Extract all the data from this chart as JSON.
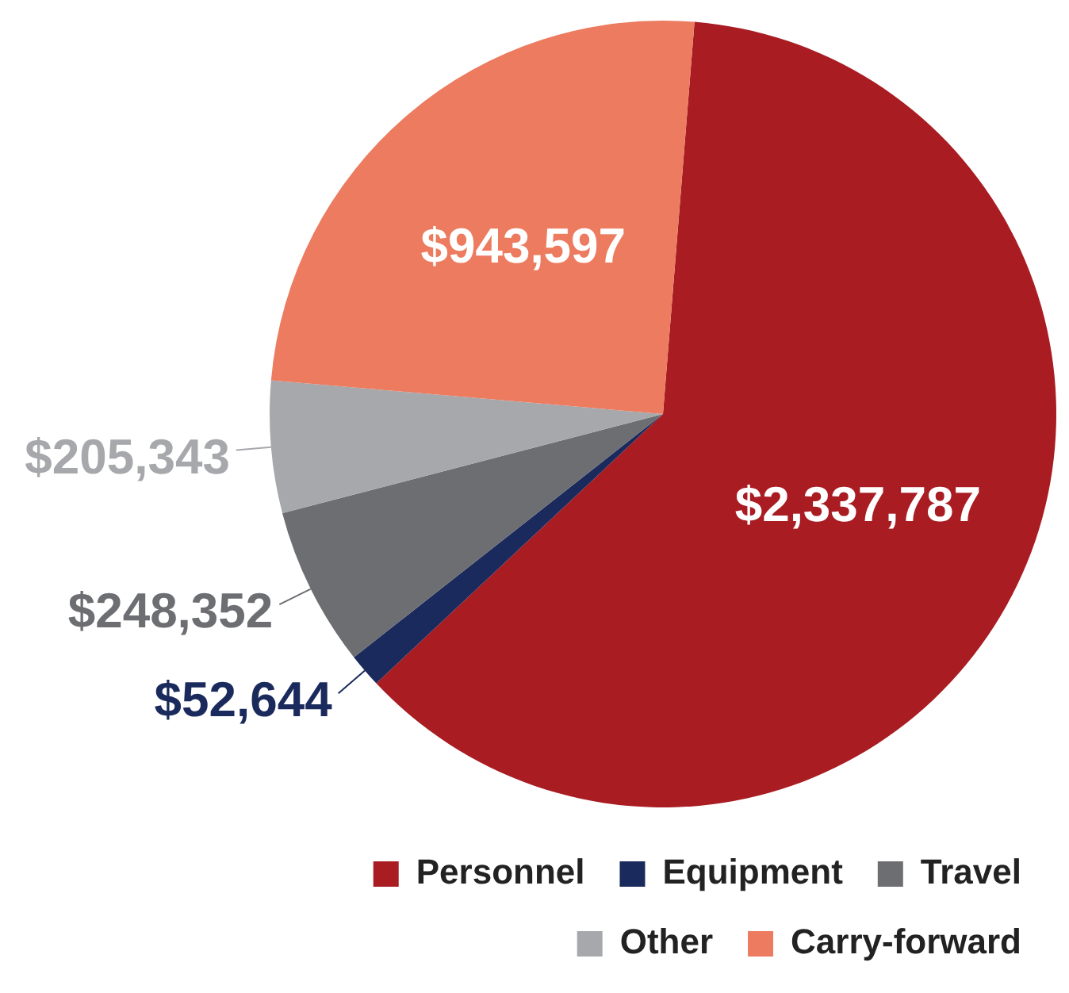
{
  "chart_data": {
    "type": "pie",
    "categories": [
      "Personnel",
      "Equipment",
      "Travel",
      "Other",
      "Carry-forward"
    ],
    "values": [
      2337787,
      52644,
      248352,
      205343,
      943597
    ],
    "colors": [
      "#a81c22",
      "#1b2a5c",
      "#6d6e72",
      "#a7a8ac",
      "#ec7b5f"
    ],
    "value_labels": [
      "$2,337,787",
      "$52,644",
      "$248,352",
      "$205,343",
      "$943,597"
    ],
    "legend": "bottom right"
  }
}
